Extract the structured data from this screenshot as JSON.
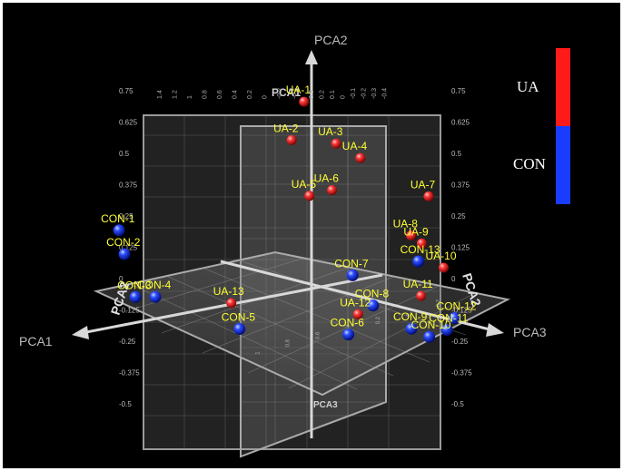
{
  "chart_data": {
    "type": "scatter",
    "subtype": "3d-pca",
    "axes": {
      "x": "PCA1",
      "y": "PCA2",
      "z": "PCA3",
      "end_labels": {
        "pca1": "PCA1",
        "pca2": "PCA2",
        "pca3": "PCA3"
      },
      "plane_labels": {
        "top": "PCA1",
        "left_edge": "PCA2",
        "right_edge": "PCA2",
        "bottom": "PCA3"
      }
    },
    "ticks": {
      "left": [
        "0.75",
        "0.625",
        "0.5",
        "0.375",
        "0.25",
        "0.125",
        "0",
        "-0.125",
        "-0.25",
        "-0.375",
        "-0.5"
      ],
      "right": [
        "0.75",
        "0.625",
        "0.5",
        "0.375",
        "0.25",
        "0.125",
        "0",
        "-0.125",
        "-0.25",
        "-0.375",
        "-0.5"
      ],
      "top": [
        "1.4",
        "1.2",
        "1",
        "0.8",
        "0.6",
        "0.4",
        "0.2",
        "0",
        "-0.2",
        "-0.4",
        "0.3",
        "0.2",
        "0.1",
        "0",
        "-0.1",
        "-0.2",
        "-0.3",
        "-0.4"
      ],
      "floor": [
        "-0.2",
        "0",
        "0.2",
        "0.4",
        "0.6",
        "0.8",
        "1"
      ]
    },
    "legend": {
      "placement": "top-right",
      "entries": [
        {
          "name": "UA",
          "color": "#ff1a1a"
        },
        {
          "name": "CON",
          "color": "#1a3cff"
        }
      ]
    },
    "series": [
      {
        "name": "UA",
        "color": "#e02020",
        "points": [
          {
            "label": "UA-1",
            "x": 0.05,
            "y": 0.71,
            "z": 0.0
          },
          {
            "label": "UA-2",
            "x": 0.2,
            "y": 0.59,
            "z": 0.05
          },
          {
            "label": "UA-3",
            "x": 0.0,
            "y": 0.56,
            "z": 0.12
          },
          {
            "label": "UA-4",
            "x": -0.12,
            "y": 0.49,
            "z": 0.15
          },
          {
            "label": "UA-5",
            "x": 0.15,
            "y": 0.37,
            "z": 0.1
          },
          {
            "label": "UA-6",
            "x": 0.0,
            "y": 0.37,
            "z": 0.1
          },
          {
            "label": "UA-7",
            "x": -0.3,
            "y": 0.35,
            "z": 0.35
          },
          {
            "label": "UA-8",
            "x": -0.32,
            "y": 0.17,
            "z": 0.25
          },
          {
            "label": "UA-9",
            "x": -0.35,
            "y": 0.14,
            "z": 0.28
          },
          {
            "label": "UA-10",
            "x": -0.4,
            "y": 0.05,
            "z": 0.35
          },
          {
            "label": "UA-11",
            "x": -0.25,
            "y": -0.04,
            "z": 0.35
          },
          {
            "label": "UA-12",
            "x": 0.1,
            "y": -0.07,
            "z": 0.3
          },
          {
            "label": "UA-13",
            "x": 0.6,
            "y": 0.0,
            "z": 0.05
          }
        ]
      },
      {
        "name": "CON",
        "color": "#1a3cff",
        "points": [
          {
            "label": "CON-1",
            "x": 0.8,
            "y": 0.24,
            "z": -0.35
          },
          {
            "label": "CON-2",
            "x": 0.9,
            "y": 0.18,
            "z": -0.25
          },
          {
            "label": "CON-3",
            "x": 1.1,
            "y": 0.08,
            "z": -0.05
          },
          {
            "label": "CON-4",
            "x": 0.9,
            "y": 0.04,
            "z": -0.1
          },
          {
            "label": "CON-5",
            "x": 0.75,
            "y": -0.05,
            "z": 0.2
          },
          {
            "label": "CON-6",
            "x": 0.3,
            "y": -0.1,
            "z": 0.4
          },
          {
            "label": "CON-7",
            "x": 0.0,
            "y": 0.05,
            "z": 0.2
          },
          {
            "label": "CON-8",
            "x": 0.0,
            "y": -0.05,
            "z": 0.3
          },
          {
            "label": "CON-9",
            "x": -0.05,
            "y": -0.12,
            "z": 0.45
          },
          {
            "label": "CON-10",
            "x": -0.1,
            "y": -0.15,
            "z": 0.5
          },
          {
            "label": "CON-11",
            "x": -0.15,
            "y": -0.12,
            "z": 0.55
          },
          {
            "label": "CON-12",
            "x": -0.2,
            "y": -0.08,
            "z": 0.55
          },
          {
            "label": "CON-13",
            "x": -0.3,
            "y": 0.08,
            "z": 0.3
          }
        ]
      }
    ]
  }
}
